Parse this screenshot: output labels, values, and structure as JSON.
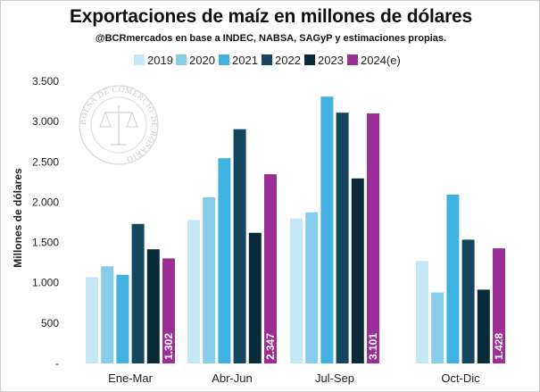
{
  "chart_data": {
    "type": "bar",
    "title": "Exportaciones de maíz en millones de dólares",
    "subtitle": "@BCRmercados en base a INDEC, NABSA, SAGyP y estimaciones propias.",
    "ylabel": "Millones de dólares",
    "xlabel": "",
    "ylim": [
      0,
      3500
    ],
    "yticks": [
      0,
      500,
      1000,
      1500,
      2000,
      2500,
      3000,
      3500
    ],
    "ytick_labels": [
      "-",
      "500",
      "1.000",
      "1.500",
      "2.000",
      "2.500",
      "3.000",
      "3.500"
    ],
    "categories": [
      "Ene-Mar",
      "Abr-Jun",
      "Jul-Sep",
      "Oct-Dic"
    ],
    "legend_position": "top",
    "grid": false,
    "series": [
      {
        "name": "2019",
        "color": "#c6e7f5",
        "values": [
          1070,
          1780,
          1800,
          1270
        ]
      },
      {
        "name": "2020",
        "color": "#86cdea",
        "values": [
          1205,
          2060,
          1875,
          880
        ]
      },
      {
        "name": "2021",
        "color": "#41b2e0",
        "values": [
          1100,
          2545,
          3310,
          2095
        ]
      },
      {
        "name": "2022",
        "color": "#14475f",
        "values": [
          1730,
          2905,
          3110,
          1535
        ]
      },
      {
        "name": "2023",
        "color": "#0c2939",
        "values": [
          1415,
          1620,
          2295,
          915
        ]
      },
      {
        "name": "2024(e)",
        "color": "#9c2e96",
        "values": [
          1302,
          2347,
          3101,
          1428
        ],
        "data_labels": [
          "1.302",
          "2.347",
          "3.101",
          "1.428"
        ]
      }
    ],
    "watermark_text": "BOLSA DE COMERCIO DE ROSARIO"
  }
}
